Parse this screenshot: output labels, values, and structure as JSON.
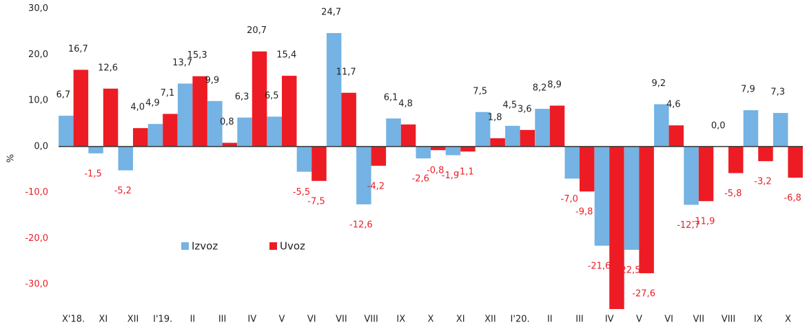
{
  "chart_data": {
    "type": "bar",
    "y_label": "%",
    "categories": [
      "X'18.",
      "XI",
      "XII",
      "I'19.",
      "II",
      "III",
      "IV",
      "V",
      "VI",
      "VII",
      "VIII",
      "IX",
      "X",
      "XI",
      "XII",
      "I'20.",
      "II",
      "III",
      "IV",
      "V",
      "VI",
      "VII",
      "VIII",
      "IX",
      "X"
    ],
    "series": [
      {
        "name": "Izvoz",
        "color": "#74b3e3",
        "values": [
          6.7,
          -1.5,
          -5.2,
          4.9,
          13.7,
          9.9,
          6.3,
          6.5,
          -5.5,
          24.7,
          -12.6,
          6.1,
          -2.6,
          -1.9,
          7.5,
          4.5,
          8.2,
          -7.0,
          -21.6,
          -22.5,
          9.2,
          -12.7,
          0.0,
          7.9,
          7.3
        ],
        "value_labels": [
          "6,7",
          "-1,5",
          "-5,2",
          "4,9",
          "13,7",
          "9,9",
          "6,3",
          "6,5",
          "-5,5",
          "24,7",
          "-12,6",
          "6,1",
          "-2,6",
          "-1,9",
          "7,5",
          "4,5",
          "8,2",
          "-7,0",
          "-21,6",
          "-22,5",
          "9,2",
          "-12,7",
          "0,0",
          "7,9",
          "7,3"
        ]
      },
      {
        "name": "Uvoz",
        "color": "#ed1c24",
        "values": [
          16.7,
          12.6,
          4.0,
          7.1,
          15.3,
          0.8,
          20.7,
          15.4,
          -7.5,
          11.7,
          -4.2,
          4.8,
          -0.8,
          -1.1,
          1.8,
          3.6,
          8.9,
          -9.8,
          -35.4,
          -27.6,
          4.6,
          -11.9,
          -5.8,
          -3.2,
          -6.8
        ],
        "value_labels": [
          "16,7",
          "12,6",
          "4,0",
          "7,1",
          "15,3",
          "0,8",
          "20,7",
          "15,4",
          "-7,5",
          "11,7",
          "-4,2",
          "4,8",
          "-0,8",
          "-1,1",
          "1,8",
          "3,6",
          "8,9",
          "-9,8",
          null,
          "-27,6",
          "4,6",
          "-11,9",
          "-5,8",
          "-3,2",
          "-6,8"
        ]
      }
    ],
    "ylim": [
      -35.4,
      31.9
    ],
    "yticks": [
      {
        "value": 30,
        "label": "30,0"
      },
      {
        "value": 20,
        "label": "20,0"
      },
      {
        "value": 10,
        "label": "10,0"
      },
      {
        "value": 0,
        "label": "0,0"
      },
      {
        "value": -10,
        "label": "-10,0"
      },
      {
        "value": -20,
        "label": "-20,0"
      },
      {
        "value": -30,
        "label": "-30,0"
      }
    ],
    "negative_label_color": "#ed1c24"
  }
}
